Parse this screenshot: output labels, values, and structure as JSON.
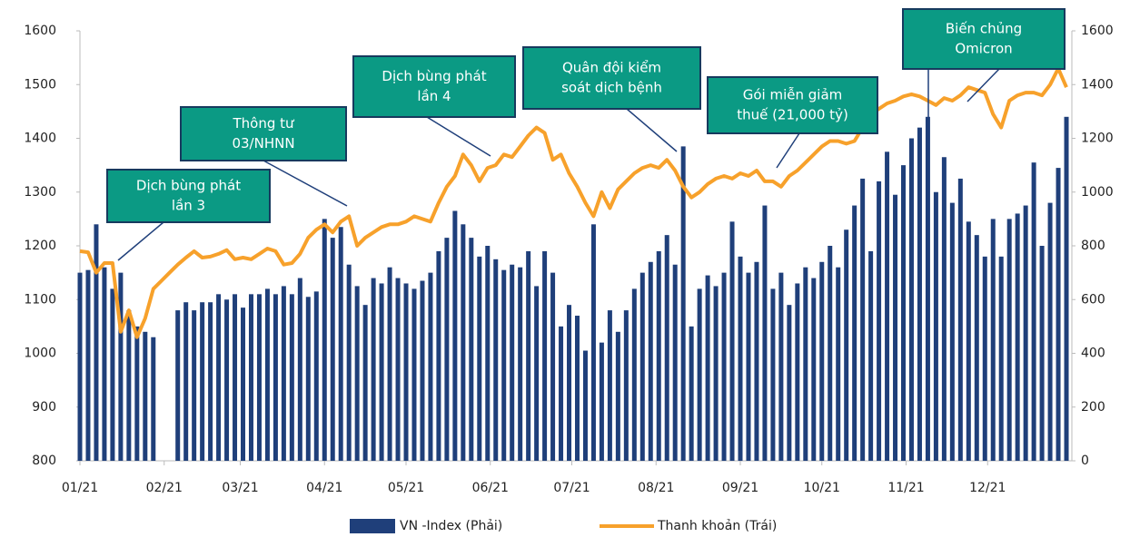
{
  "chart_data": {
    "type": "bar",
    "x": [
      0,
      3,
      6,
      9,
      12,
      15,
      18,
      21,
      24,
      27,
      30,
      33,
      36,
      39,
      42,
      45,
      48,
      51,
      54,
      57,
      60,
      63,
      66,
      69,
      72,
      75,
      78,
      81,
      84,
      87,
      90,
      93,
      96,
      99,
      102,
      105,
      108,
      111,
      114,
      117,
      120,
      123,
      126,
      129,
      132,
      135,
      138,
      141,
      144,
      147,
      150,
      153,
      156,
      159,
      162,
      165,
      168,
      171,
      174,
      177,
      180,
      183,
      186,
      189,
      192,
      195,
      198,
      201,
      204,
      207,
      210,
      213,
      216,
      219,
      222,
      225,
      228,
      231,
      234,
      237,
      240,
      243,
      246,
      249,
      252,
      255,
      258,
      261,
      264,
      267,
      270,
      273,
      276,
      279,
      282,
      285,
      288,
      291,
      294,
      297,
      300,
      303,
      306,
      309,
      312,
      315,
      318,
      321,
      324,
      327,
      330,
      333,
      336,
      339,
      342,
      345,
      348,
      351,
      354,
      357,
      360,
      363
    ],
    "xlim": [
      0,
      365
    ],
    "xticks": [
      {
        "value": 0,
        "label": "01/21"
      },
      {
        "value": 31,
        "label": "02/21"
      },
      {
        "value": 59,
        "label": "03/21"
      },
      {
        "value": 90,
        "label": "04/21"
      },
      {
        "value": 120,
        "label": "05/21"
      },
      {
        "value": 151,
        "label": "06/21"
      },
      {
        "value": 181,
        "label": "07/21"
      },
      {
        "value": 212,
        "label": "08/21"
      },
      {
        "value": 243,
        "label": "09/21"
      },
      {
        "value": 273,
        "label": "10/21"
      },
      {
        "value": 304,
        "label": "11/21"
      },
      {
        "value": 334,
        "label": "12/21"
      }
    ],
    "ylim": [
      800,
      1600
    ],
    "yticks": [
      800,
      900,
      1000,
      1100,
      1200,
      1300,
      1400,
      1500,
      1600
    ],
    "y2lim": [
      0,
      1600
    ],
    "y2ticks": [
      0,
      200,
      400,
      600,
      800,
      1000,
      1200,
      1400,
      1600
    ],
    "series": [
      {
        "name": "VN -Index (Phải)",
        "type": "bar",
        "axis": "y2",
        "color": "#1f3f7a",
        "values": [
          700,
          710,
          880,
          720,
          640,
          700,
          560,
          500,
          480,
          460,
          null,
          null,
          560,
          590,
          560,
          590,
          590,
          620,
          600,
          620,
          570,
          620,
          620,
          640,
          620,
          650,
          620,
          680,
          610,
          630,
          900,
          830,
          870,
          730,
          650,
          580,
          680,
          660,
          720,
          680,
          660,
          640,
          670,
          700,
          780,
          830,
          930,
          880,
          830,
          760,
          800,
          750,
          710,
          730,
          720,
          780,
          650,
          780,
          700,
          500,
          580,
          540,
          410,
          880,
          440,
          560,
          480,
          560,
          640,
          700,
          740,
          780,
          840,
          730,
          1170,
          500,
          640,
          690,
          650,
          700,
          890,
          760,
          700,
          740,
          950,
          640,
          700,
          580,
          660,
          720,
          680,
          740,
          800,
          720,
          860,
          950,
          1050,
          780,
          1040,
          1150,
          990,
          1100,
          1200,
          1240,
          1280,
          1000,
          1130,
          960,
          1050,
          890,
          840,
          760,
          900,
          760,
          900,
          920,
          950,
          1110,
          800,
          960,
          1090,
          1280
        ]
      },
      {
        "name": "Thanh khoản (Trái)",
        "type": "line",
        "color": "#f7a12b",
        "values": [
          1190,
          1188,
          1150,
          1168,
          1168,
          1040,
          1080,
          1030,
          1065,
          1120,
          1135,
          1150,
          1165,
          1178,
          1190,
          1178,
          1180,
          1185,
          1192,
          1175,
          1178,
          1175,
          1185,
          1195,
          1190,
          1165,
          1168,
          1185,
          1215,
          1230,
          1240,
          1225,
          1245,
          1255,
          1200,
          1215,
          1225,
          1235,
          1240,
          1240,
          1245,
          1255,
          1250,
          1245,
          1280,
          1310,
          1330,
          1370,
          1350,
          1320,
          1345,
          1350,
          1370,
          1365,
          1385,
          1405,
          1420,
          1410,
          1360,
          1370,
          1335,
          1310,
          1280,
          1255,
          1300,
          1270,
          1305,
          1320,
          1335,
          1345,
          1350,
          1345,
          1360,
          1340,
          1310,
          1290,
          1300,
          1315,
          1325,
          1330,
          1325,
          1335,
          1330,
          1340,
          1320,
          1320,
          1310,
          1330,
          1340,
          1355,
          1370,
          1385,
          1395,
          1395,
          1390,
          1395,
          1420,
          1445,
          1455,
          1465,
          1470,
          1478,
          1482,
          1478,
          1470,
          1462,
          1475,
          1470,
          1480,
          1495,
          1490,
          1485,
          1445,
          1420,
          1470,
          1480,
          1485,
          1485,
          1480,
          1500,
          1530,
          1495
        ]
      }
    ],
    "annotations": [
      {
        "lines": [
          "Dịch bùng phát",
          "lần 3"
        ]
      },
      {
        "lines": [
          "Thông tư",
          "03/NHNN"
        ]
      },
      {
        "lines": [
          "Dịch bùng phát",
          "lần 4"
        ]
      },
      {
        "lines": [
          "Quân đội kiểm",
          "soát dịch bệnh"
        ]
      },
      {
        "lines": [
          "Gói miễn giảm",
          "thuế (21,000 tỷ)"
        ]
      },
      {
        "lines": [
          "Biến chủng",
          "Omicron"
        ]
      }
    ]
  }
}
